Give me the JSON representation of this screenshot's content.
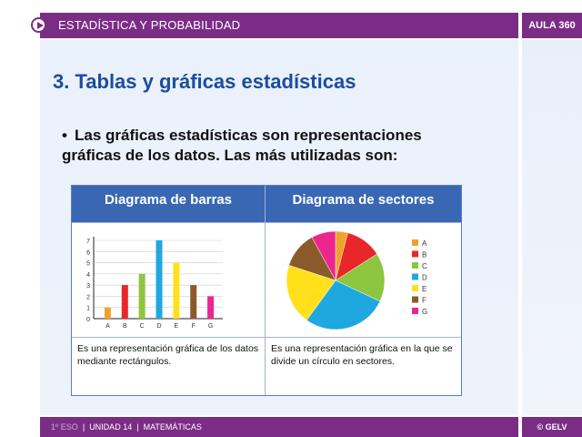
{
  "header": {
    "title": "ESTADÍSTICA Y PROBABILIDAD",
    "badge": "AULA 360",
    "accent": "#7b2d86"
  },
  "heading": "3. Tablas y gráficas estadísticas",
  "bullet": {
    "line1": "Las gráficas estadísticas son representaciones",
    "line2": "gráficas de los datos. Las más utilizadas son:"
  },
  "table": {
    "col1_header": "Diagrama de barras",
    "col2_header": "Diagrama de sectores",
    "col1_caption": "Es una representación gráfica de los datos mediante rectángulos.",
    "col2_caption": "Es una representación gráfica en la que se divide un círculo en sectores."
  },
  "footer": {
    "grade": "1º ESO",
    "sep1": "|",
    "unit": "UNIDAD 14",
    "sep2": "|",
    "subject": "MATEMÁTICAS",
    "copyright": "© GELV"
  },
  "chart_data": [
    {
      "type": "bar",
      "categories": [
        "A",
        "B",
        "C",
        "D",
        "E",
        "F",
        "G"
      ],
      "values": [
        1,
        3,
        4,
        7,
        5,
        3,
        2
      ],
      "colors": [
        "#f4a12b",
        "#e8262b",
        "#8dc63f",
        "#1fa8e0",
        "#ffe01b",
        "#8b5a2b",
        "#ec268f"
      ],
      "yticks": [
        0,
        1,
        2,
        3,
        4,
        5,
        6,
        7
      ],
      "ylim": [
        0,
        7
      ],
      "grid": true
    },
    {
      "type": "pie",
      "categories": [
        "A",
        "B",
        "C",
        "D",
        "E",
        "F",
        "G"
      ],
      "values": [
        1,
        3,
        4,
        7,
        5,
        3,
        2
      ],
      "colors": [
        "#f4a12b",
        "#e8262b",
        "#8dc63f",
        "#1fa8e0",
        "#ffe01b",
        "#8b5a2b",
        "#ec268f"
      ],
      "legend": "right"
    }
  ]
}
